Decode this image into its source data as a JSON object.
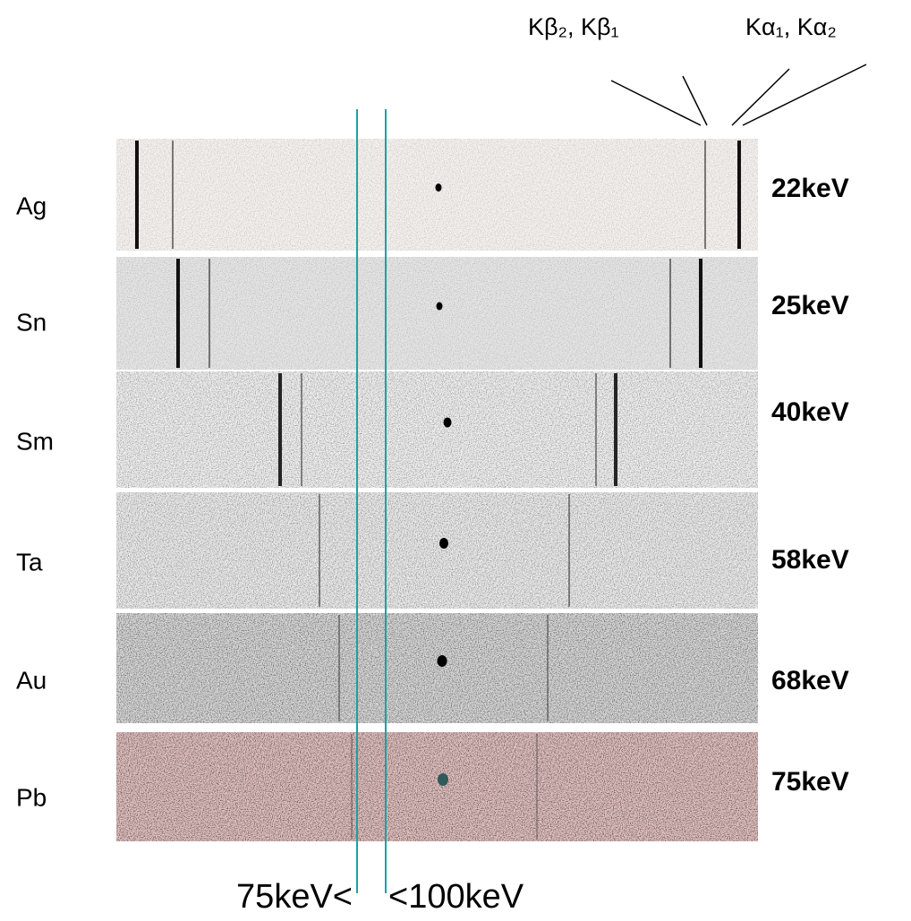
{
  "annotations": {
    "k_beta": "Kβ₂, Kβ₁",
    "k_alpha": "Kα₁, Kα₂",
    "lower_bound": "75keV<",
    "upper_bound": "<100keV"
  },
  "rows": [
    {
      "element": "Ag",
      "energy": "22keV"
    },
    {
      "element": "Sn",
      "energy": "25keV"
    },
    {
      "element": "Sm",
      "energy": "40keV"
    },
    {
      "element": "Ta",
      "energy": "58keV"
    },
    {
      "element": "Au",
      "energy": "68keV"
    },
    {
      "element": "Pb",
      "energy": "75keV"
    }
  ]
}
